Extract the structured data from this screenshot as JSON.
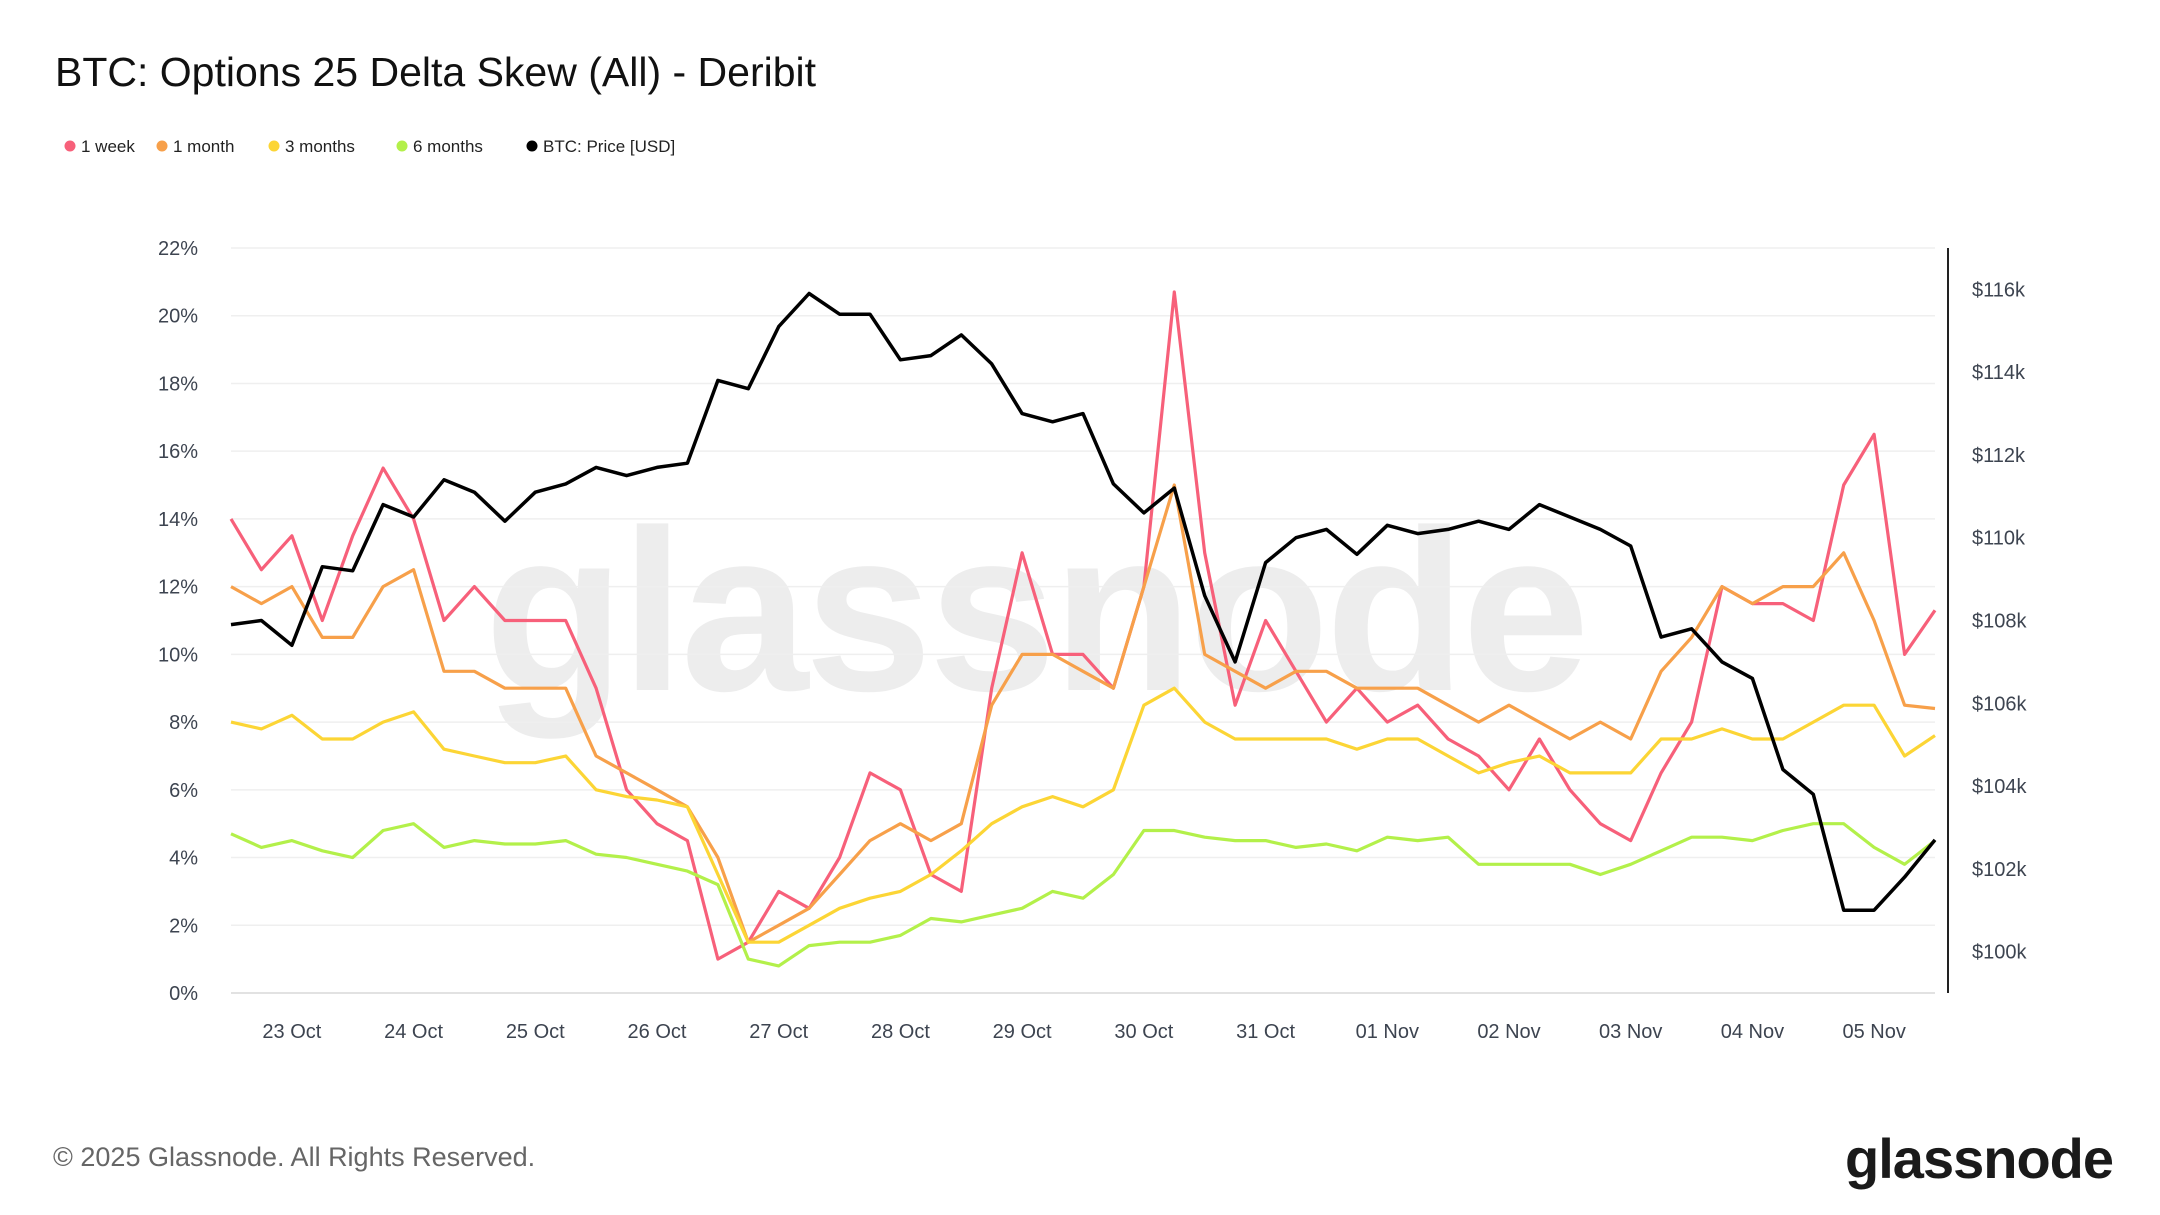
{
  "chart_data": {
    "type": "line",
    "title": "BTC: Options 25 Delta Skew (All) - Deribit",
    "x_start": "2025-10-22T12:00",
    "x_step_hours": 6,
    "x_tick_labels": [
      "23 Oct",
      "24 Oct",
      "25 Oct",
      "26 Oct",
      "27 Oct",
      "28 Oct",
      "29 Oct",
      "30 Oct",
      "31 Oct",
      "01 Nov",
      "02 Nov",
      "03 Nov",
      "04 Nov",
      "05 Nov"
    ],
    "y_left": {
      "ticks": [
        "0%",
        "2%",
        "4%",
        "6%",
        "8%",
        "10%",
        "12%",
        "14%",
        "16%",
        "18%",
        "20%",
        "22%"
      ],
      "ylim": [
        0,
        22
      ],
      "unit": "%"
    },
    "y_right": {
      "ticks": [
        "$100k",
        "$102k",
        "$104k",
        "$106k",
        "$108k",
        "$110k",
        "$112k",
        "$114k",
        "$116k"
      ],
      "tick_values": [
        100,
        102,
        104,
        106,
        108,
        110,
        112,
        114,
        116
      ],
      "ylim": [
        99,
        117
      ],
      "unit": "USD thousands"
    },
    "grid": true,
    "legend_placement": "top-left",
    "series": [
      {
        "name": "1 week",
        "color": "#f7607a",
        "axis": "left",
        "values": [
          14,
          12.5,
          13.5,
          11,
          13.5,
          15.5,
          14,
          11,
          12,
          11,
          11,
          11,
          9,
          6,
          5,
          4.5,
          1,
          1.5,
          3,
          2.5,
          4,
          6.5,
          6,
          3.5,
          3,
          9,
          13,
          10,
          10,
          9,
          12,
          20.7,
          13,
          8.5,
          11,
          9.5,
          8,
          9,
          8,
          8.5,
          7.5,
          7,
          6,
          7.5,
          6,
          5,
          4.5,
          6.5,
          8,
          12,
          11.5,
          11.5,
          11,
          15,
          16.5,
          10,
          11.3
        ]
      },
      {
        "name": "1 month",
        "color": "#f7a04a",
        "axis": "left",
        "values": [
          12,
          11.5,
          12,
          10.5,
          10.5,
          12,
          12.5,
          9.5,
          9.5,
          9,
          9,
          9,
          7,
          6.5,
          6,
          5.5,
          4,
          1.5,
          2,
          2.5,
          3.5,
          4.5,
          5,
          4.5,
          5,
          8.5,
          10,
          10,
          9.5,
          9,
          12,
          15,
          10,
          9.5,
          9,
          9.5,
          9.5,
          9,
          9,
          9,
          8.5,
          8,
          8.5,
          8,
          7.5,
          8,
          7.5,
          9.5,
          10.5,
          12,
          11.5,
          12,
          12,
          13,
          11,
          8.5,
          8.4
        ]
      },
      {
        "name": "3 months",
        "color": "#fcd535",
        "axis": "left",
        "values": [
          8,
          7.8,
          8.2,
          7.5,
          7.5,
          8,
          8.3,
          7.2,
          7,
          6.8,
          6.8,
          7,
          6,
          5.8,
          5.7,
          5.5,
          3.5,
          1.5,
          1.5,
          2,
          2.5,
          2.8,
          3,
          3.5,
          4.2,
          5,
          5.5,
          5.8,
          5.5,
          6,
          8.5,
          9,
          8,
          7.5,
          7.5,
          7.5,
          7.5,
          7.2,
          7.5,
          7.5,
          7,
          6.5,
          6.8,
          7,
          6.5,
          6.5,
          6.5,
          7.5,
          7.5,
          7.8,
          7.5,
          7.5,
          8,
          8.5,
          8.5,
          7,
          7.6
        ]
      },
      {
        "name": "6 months",
        "color": "#b3f04a",
        "axis": "left",
        "values": [
          4.7,
          4.3,
          4.5,
          4.2,
          4,
          4.8,
          5,
          4.3,
          4.5,
          4.4,
          4.4,
          4.5,
          4.1,
          4,
          3.8,
          3.6,
          3.2,
          1,
          0.8,
          1.4,
          1.5,
          1.5,
          1.7,
          2.2,
          2.1,
          2.3,
          2.5,
          3,
          2.8,
          3.5,
          4.8,
          4.8,
          4.6,
          4.5,
          4.5,
          4.3,
          4.4,
          4.2,
          4.6,
          4.5,
          4.6,
          3.8,
          3.8,
          3.8,
          3.8,
          3.5,
          3.8,
          4.2,
          4.6,
          4.6,
          4.5,
          4.8,
          5,
          5,
          4.3,
          3.8,
          4.5
        ]
      },
      {
        "name": "BTC: Price [USD]",
        "color": "#000000",
        "axis": "right",
        "values": [
          107.9,
          108,
          107.4,
          109.3,
          109.2,
          110.8,
          110.5,
          111.4,
          111.1,
          110.4,
          111.1,
          111.3,
          111.7,
          111.5,
          111.7,
          111.8,
          113.8,
          113.6,
          115.1,
          115.9,
          115.4,
          115.4,
          114.3,
          114.4,
          114.9,
          114.2,
          113,
          112.8,
          113,
          111.3,
          110.6,
          111.2,
          108.6,
          107,
          109.4,
          110,
          110.2,
          109.6,
          110.3,
          110.1,
          110.2,
          110.4,
          110.2,
          110.8,
          110.5,
          110.2,
          109.8,
          107.6,
          107.8,
          107,
          106.6,
          104.4,
          103.8,
          101,
          101,
          101.8,
          102.7
        ]
      }
    ]
  },
  "watermark": "glassnode",
  "footer": {
    "copyright": "© 2025 Glassnode. All Rights Reserved.",
    "logo": "glassnode"
  }
}
